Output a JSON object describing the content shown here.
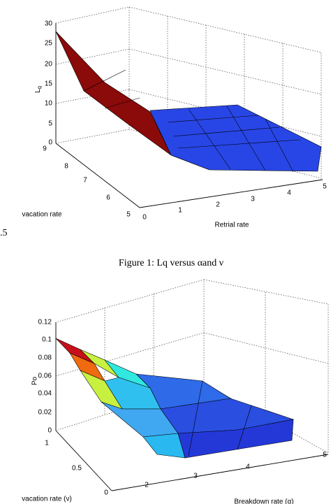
{
  "figure1": {
    "z_label": {
      "main": "L",
      "sub": "q"
    },
    "z_ticks": [
      "0",
      "5",
      "10",
      "15",
      "20",
      "25",
      "30"
    ],
    "y_label": "vacation rate",
    "y_ticks": [
      "9",
      "8",
      "7",
      "6",
      "5"
    ],
    "x_label": "Retrial rate",
    "x_ticks": [
      "0",
      "1",
      "2",
      "3",
      "4",
      "5"
    ]
  },
  "stray_text": ".5",
  "caption1": "Figure 1: Lq versus αand ν",
  "figure2": {
    "z_label": "Po",
    "z_ticks": [
      "0",
      "0.02",
      "0.04",
      "0.06",
      "0.08",
      "0.1",
      "0.12"
    ],
    "y_label": "vacation rate (ν)",
    "y_ticks": [
      "1",
      "0.5",
      "0"
    ],
    "x_label": "Breakdown rate (α)",
    "x_ticks": [
      "2",
      "3",
      "4",
      "5"
    ]
  }
}
